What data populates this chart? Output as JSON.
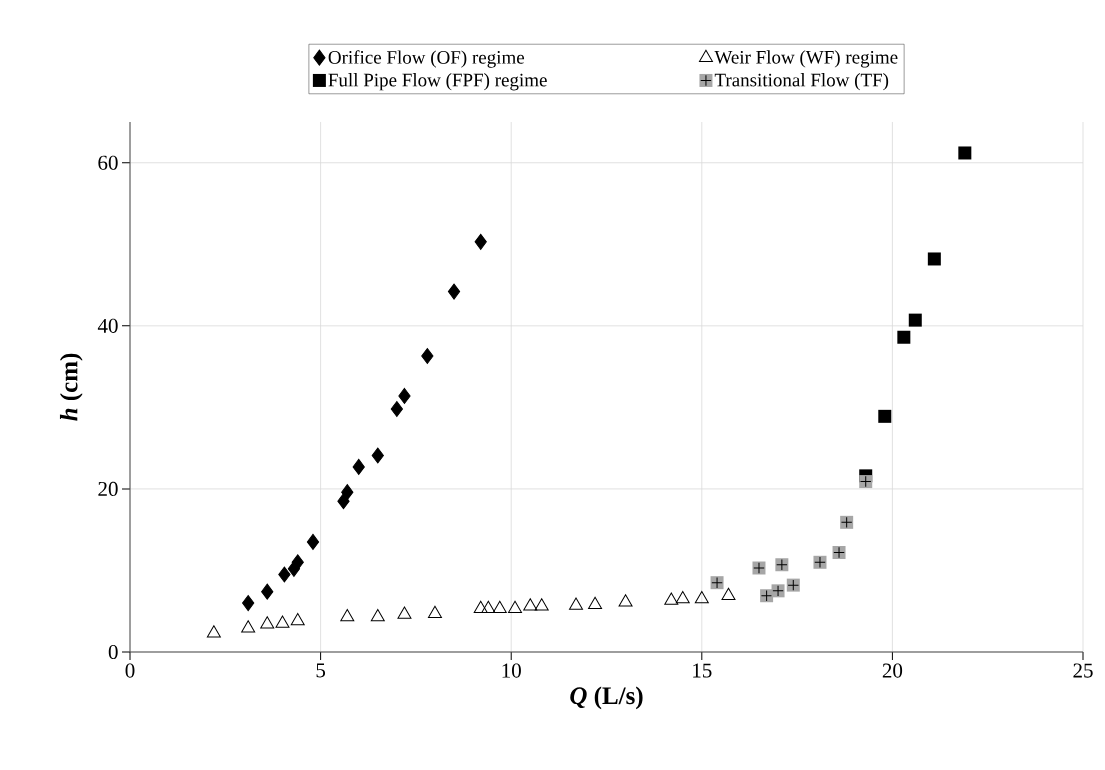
{
  "chart_data": {
    "type": "scatter",
    "xlabel": "*Q* (L/s)",
    "ylabel": "*h* (cm)",
    "xlim": [
      0,
      25
    ],
    "ylim": [
      0,
      65
    ],
    "xticks": [
      0,
      5,
      10,
      15,
      20,
      25
    ],
    "yticks": [
      0,
      20,
      40,
      60
    ],
    "grid": true,
    "legend": "top",
    "series": [
      {
        "name": "Orifice Flow (OF) regime",
        "color": "#000000",
        "marker": "diamond",
        "x": [
          3.1,
          3.6,
          4.05,
          4.3,
          4.4,
          4.8,
          5.6,
          5.7,
          6.0,
          6.5,
          7.0,
          7.2,
          7.8,
          8.5,
          9.2
        ],
        "values": [
          6.0,
          7.4,
          9.5,
          10.2,
          11.0,
          13.5,
          18.5,
          19.6,
          22.7,
          24.1,
          29.8,
          31.4,
          36.3,
          44.2,
          50.3
        ]
      },
      {
        "name": "Weir Flow (WF) regime",
        "color": "#000000",
        "marker": "triangle",
        "x": [
          2.2,
          3.1,
          3.6,
          4.0,
          4.4,
          5.7,
          6.5,
          7.2,
          8.0,
          9.2,
          9.4,
          9.7,
          10.1,
          10.5,
          10.8,
          11.7,
          12.2,
          13.0,
          14.2,
          14.5,
          15.0,
          15.7
        ],
        "values": [
          2.3,
          2.9,
          3.4,
          3.5,
          3.8,
          4.3,
          4.3,
          4.6,
          4.7,
          5.3,
          5.3,
          5.3,
          5.3,
          5.6,
          5.6,
          5.7,
          5.8,
          6.1,
          6.3,
          6.5,
          6.5,
          6.9
        ]
      },
      {
        "name": "Full Pipe Flow (FPF) regime",
        "color": "#000000",
        "marker": "square",
        "x": [
          19.3,
          19.8,
          20.3,
          20.6,
          21.1,
          21.9
        ],
        "values": [
          21.6,
          28.9,
          38.6,
          40.7,
          48.2,
          61.2
        ]
      },
      {
        "name": "Transitional Flow (TF)",
        "color": "#a6a6a6",
        "marker": "square",
        "x": [
          15.4,
          16.5,
          16.7,
          17.0,
          17.1,
          17.4,
          18.1,
          18.6,
          18.8,
          19.3
        ],
        "values": [
          8.5,
          10.3,
          6.9,
          7.5,
          10.7,
          8.2,
          11.0,
          12.2,
          15.9,
          20.9
        ]
      }
    ]
  }
}
